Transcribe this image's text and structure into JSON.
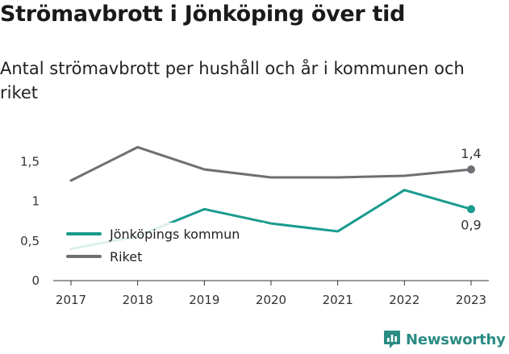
{
  "title": "Strömavbrott i Jönköping över tid",
  "subtitle": "Antal strömavbrott per hushåll och år i kommunen och riket",
  "brand": {
    "name": "Newsworthy",
    "color": "#2b8c84"
  },
  "chart_data": {
    "type": "line",
    "title": "Strömavbrott i Jönköping över tid",
    "subtitle": "Antal strömavbrott per hushåll och år i kommunen och riket",
    "xlabel": "",
    "ylabel": "",
    "x": [
      "2017",
      "2018",
      "2019",
      "2020",
      "2021",
      "2022",
      "2023"
    ],
    "ylim": [
      0,
      1.8
    ],
    "yticks": [
      0,
      0.5,
      1,
      1.5
    ],
    "ytick_labels": [
      "0",
      "0,5",
      "1",
      "1,5"
    ],
    "grid": false,
    "legend": "left",
    "series": [
      {
        "name": "Jönköpings kommun",
        "color": "#1a9b8e",
        "values": [
          0.4,
          0.56,
          0.9,
          0.72,
          0.62,
          1.14,
          0.9
        ],
        "end_label": "0,9",
        "end_label_position": "below"
      },
      {
        "name": "Riket",
        "color": "#6e6e73",
        "values": [
          1.26,
          1.68,
          1.4,
          1.3,
          1.3,
          1.32,
          1.4
        ],
        "end_label": "1,4",
        "end_label_position": "above"
      }
    ]
  }
}
